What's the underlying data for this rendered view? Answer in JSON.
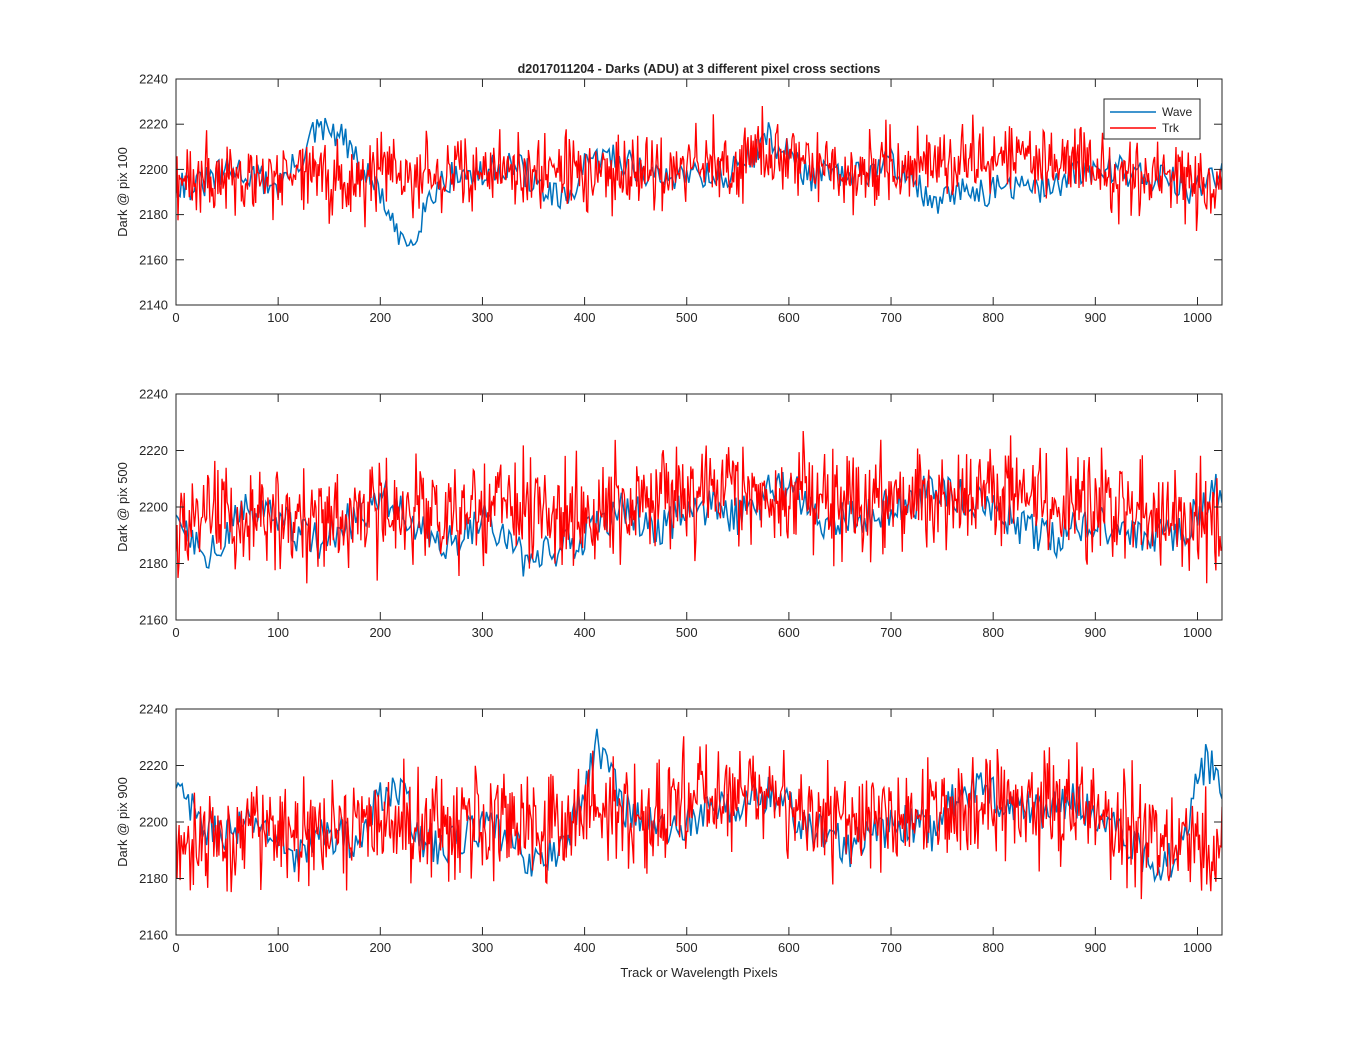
{
  "figure": {
    "title": "d2017011204 - Darks (ADU) at 3 different pixel cross sections",
    "xlabel": "Track or Wavelength Pixels"
  },
  "legend": {
    "position": "top-right",
    "entries": [
      {
        "label": "Wave",
        "color": "#0072BD"
      },
      {
        "label": "Trk",
        "color": "#FF0000"
      }
    ]
  },
  "chart_data": [
    {
      "type": "line",
      "ylabel": "Dark @ pix 100",
      "xlim": [
        0,
        1024
      ],
      "ylim": [
        2140,
        2240
      ],
      "xticks": [
        0,
        100,
        200,
        300,
        400,
        500,
        600,
        700,
        800,
        900,
        1000
      ],
      "yticks": [
        2140,
        2160,
        2180,
        2200,
        2220,
        2240
      ],
      "series": [
        {
          "name": "Wave",
          "color": "#0072BD",
          "x": [
            0,
            20,
            40,
            60,
            80,
            100,
            120,
            135,
            150,
            165,
            180,
            200,
            215,
            230,
            245,
            260,
            280,
            300,
            320,
            340,
            360,
            380,
            400,
            420,
            440,
            460,
            480,
            500,
            520,
            540,
            560,
            580,
            600,
            620,
            640,
            660,
            680,
            700,
            720,
            740,
            760,
            780,
            800,
            820,
            840,
            860,
            880,
            900,
            920,
            940,
            960,
            980,
            1000,
            1024
          ],
          "y": [
            2195,
            2192,
            2197,
            2200,
            2196,
            2193,
            2203,
            2216,
            2217,
            2213,
            2200,
            2190,
            2170,
            2168,
            2185,
            2195,
            2198,
            2197,
            2202,
            2200,
            2190,
            2185,
            2200,
            2206,
            2204,
            2198,
            2195,
            2200,
            2198,
            2197,
            2205,
            2214,
            2207,
            2197,
            2198,
            2195,
            2200,
            2203,
            2197,
            2183,
            2188,
            2192,
            2190,
            2193,
            2190,
            2194,
            2197,
            2200,
            2201,
            2198,
            2197,
            2194,
            2190,
            2200
          ]
        },
        {
          "name": "Trk",
          "color": "#FF0000",
          "x": [
            0,
            20,
            40,
            60,
            80,
            100,
            120,
            140,
            160,
            180,
            200,
            220,
            240,
            260,
            280,
            300,
            320,
            340,
            360,
            380,
            400,
            420,
            440,
            460,
            480,
            500,
            520,
            540,
            560,
            580,
            600,
            620,
            640,
            660,
            680,
            700,
            720,
            740,
            760,
            780,
            800,
            820,
            840,
            860,
            880,
            900,
            920,
            940,
            960,
            980,
            1000,
            1024
          ],
          "y": [
            2193,
            2196,
            2198,
            2197,
            2195,
            2197,
            2199,
            2198,
            2196,
            2197,
            2198,
            2199,
            2198,
            2197,
            2196,
            2198,
            2199,
            2200,
            2199,
            2198,
            2200,
            2199,
            2198,
            2199,
            2200,
            2203,
            2202,
            2203,
            2205,
            2206,
            2205,
            2203,
            2200,
            2198,
            2199,
            2200,
            2202,
            2204,
            2205,
            2206,
            2205,
            2204,
            2205,
            2204,
            2203,
            2201,
            2198,
            2196,
            2195,
            2194,
            2193,
            2193
          ],
          "amplitude": 9
        }
      ]
    },
    {
      "type": "line",
      "ylabel": "Dark @ pix 500",
      "xlim": [
        0,
        1024
      ],
      "ylim": [
        2160,
        2240
      ],
      "xticks": [
        0,
        100,
        200,
        300,
        400,
        500,
        600,
        700,
        800,
        900,
        1000
      ],
      "yticks": [
        2160,
        2180,
        2200,
        2220,
        2240
      ],
      "series": [
        {
          "name": "Wave",
          "color": "#0072BD",
          "x": [
            0,
            20,
            40,
            60,
            80,
            100,
            120,
            140,
            160,
            180,
            200,
            220,
            240,
            260,
            280,
            300,
            320,
            340,
            360,
            380,
            400,
            420,
            440,
            460,
            480,
            500,
            520,
            540,
            560,
            580,
            600,
            620,
            640,
            660,
            680,
            700,
            720,
            740,
            760,
            780,
            800,
            820,
            840,
            860,
            880,
            900,
            920,
            940,
            960,
            980,
            1000,
            1024
          ],
          "y": [
            2198,
            2188,
            2183,
            2196,
            2200,
            2195,
            2190,
            2188,
            2192,
            2198,
            2205,
            2200,
            2192,
            2185,
            2190,
            2196,
            2190,
            2182,
            2183,
            2187,
            2190,
            2195,
            2200,
            2195,
            2192,
            2202,
            2200,
            2196,
            2198,
            2205,
            2207,
            2200,
            2194,
            2196,
            2198,
            2200,
            2202,
            2206,
            2205,
            2202,
            2198,
            2195,
            2190,
            2188,
            2192,
            2194,
            2192,
            2190,
            2189,
            2190,
            2198,
            2208
          ]
        },
        {
          "name": "Trk",
          "color": "#FF0000",
          "x": [
            0,
            20,
            40,
            60,
            80,
            100,
            120,
            140,
            160,
            180,
            200,
            220,
            240,
            260,
            280,
            300,
            320,
            340,
            360,
            380,
            400,
            420,
            440,
            460,
            480,
            500,
            520,
            540,
            560,
            580,
            600,
            620,
            640,
            660,
            680,
            700,
            720,
            740,
            760,
            780,
            800,
            820,
            840,
            860,
            880,
            900,
            920,
            940,
            960,
            980,
            1000,
            1024
          ],
          "y": [
            2194,
            2196,
            2197,
            2196,
            2197,
            2195,
            2196,
            2195,
            2196,
            2197,
            2198,
            2197,
            2196,
            2197,
            2198,
            2199,
            2200,
            2199,
            2198,
            2199,
            2200,
            2199,
            2200,
            2201,
            2202,
            2205,
            2206,
            2207,
            2206,
            2205,
            2204,
            2202,
            2201,
            2200,
            2201,
            2202,
            2203,
            2203,
            2202,
            2203,
            2204,
            2203,
            2204,
            2203,
            2202,
            2200,
            2198,
            2197,
            2196,
            2195,
            2196,
            2195
          ],
          "amplitude": 10
        }
      ]
    },
    {
      "type": "line",
      "ylabel": "Dark @ pix 900",
      "xlim": [
        0,
        1024
      ],
      "ylim": [
        2160,
        2240
      ],
      "xticks": [
        0,
        100,
        200,
        300,
        400,
        500,
        600,
        700,
        800,
        900,
        1000
      ],
      "yticks": [
        2160,
        2180,
        2200,
        2220,
        2240
      ],
      "series": [
        {
          "name": "Wave",
          "color": "#0072BD",
          "x": [
            0,
            10,
            20,
            40,
            60,
            80,
            100,
            120,
            140,
            160,
            180,
            200,
            210,
            220,
            240,
            260,
            280,
            300,
            320,
            340,
            360,
            380,
            400,
            410,
            420,
            440,
            460,
            480,
            500,
            520,
            540,
            560,
            580,
            600,
            620,
            640,
            660,
            680,
            700,
            720,
            740,
            760,
            780,
            800,
            820,
            840,
            860,
            880,
            900,
            920,
            940,
            960,
            980,
            1000,
            1010,
            1024
          ],
          "y": [
            2210,
            2208,
            2200,
            2196,
            2197,
            2200,
            2193,
            2188,
            2195,
            2196,
            2192,
            2210,
            2212,
            2210,
            2195,
            2190,
            2195,
            2198,
            2195,
            2188,
            2185,
            2193,
            2210,
            2228,
            2222,
            2205,
            2200,
            2197,
            2200,
            2203,
            2205,
            2207,
            2210,
            2205,
            2197,
            2196,
            2190,
            2195,
            2198,
            2200,
            2196,
            2208,
            2212,
            2210,
            2206,
            2204,
            2205,
            2208,
            2203,
            2197,
            2190,
            2185,
            2188,
            2215,
            2222,
            2210
          ]
        },
        {
          "name": "Trk",
          "color": "#FF0000",
          "x": [
            0,
            20,
            40,
            60,
            80,
            100,
            120,
            140,
            160,
            180,
            200,
            220,
            240,
            260,
            280,
            300,
            320,
            340,
            360,
            380,
            400,
            420,
            440,
            460,
            480,
            500,
            520,
            540,
            560,
            580,
            600,
            620,
            640,
            660,
            680,
            700,
            720,
            740,
            760,
            780,
            800,
            820,
            840,
            860,
            880,
            900,
            920,
            940,
            960,
            980,
            1000,
            1024
          ],
          "y": [
            2195,
            2194,
            2196,
            2198,
            2200,
            2199,
            2198,
            2197,
            2198,
            2199,
            2200,
            2199,
            2198,
            2199,
            2200,
            2201,
            2200,
            2199,
            2200,
            2201,
            2203,
            2204,
            2203,
            2204,
            2205,
            2207,
            2208,
            2210,
            2212,
            2210,
            2207,
            2205,
            2203,
            2201,
            2200,
            2201,
            2202,
            2203,
            2205,
            2206,
            2207,
            2206,
            2205,
            2204,
            2203,
            2201,
            2199,
            2197,
            2196,
            2195,
            2194,
            2192
          ],
          "amplitude": 10
        }
      ]
    }
  ]
}
